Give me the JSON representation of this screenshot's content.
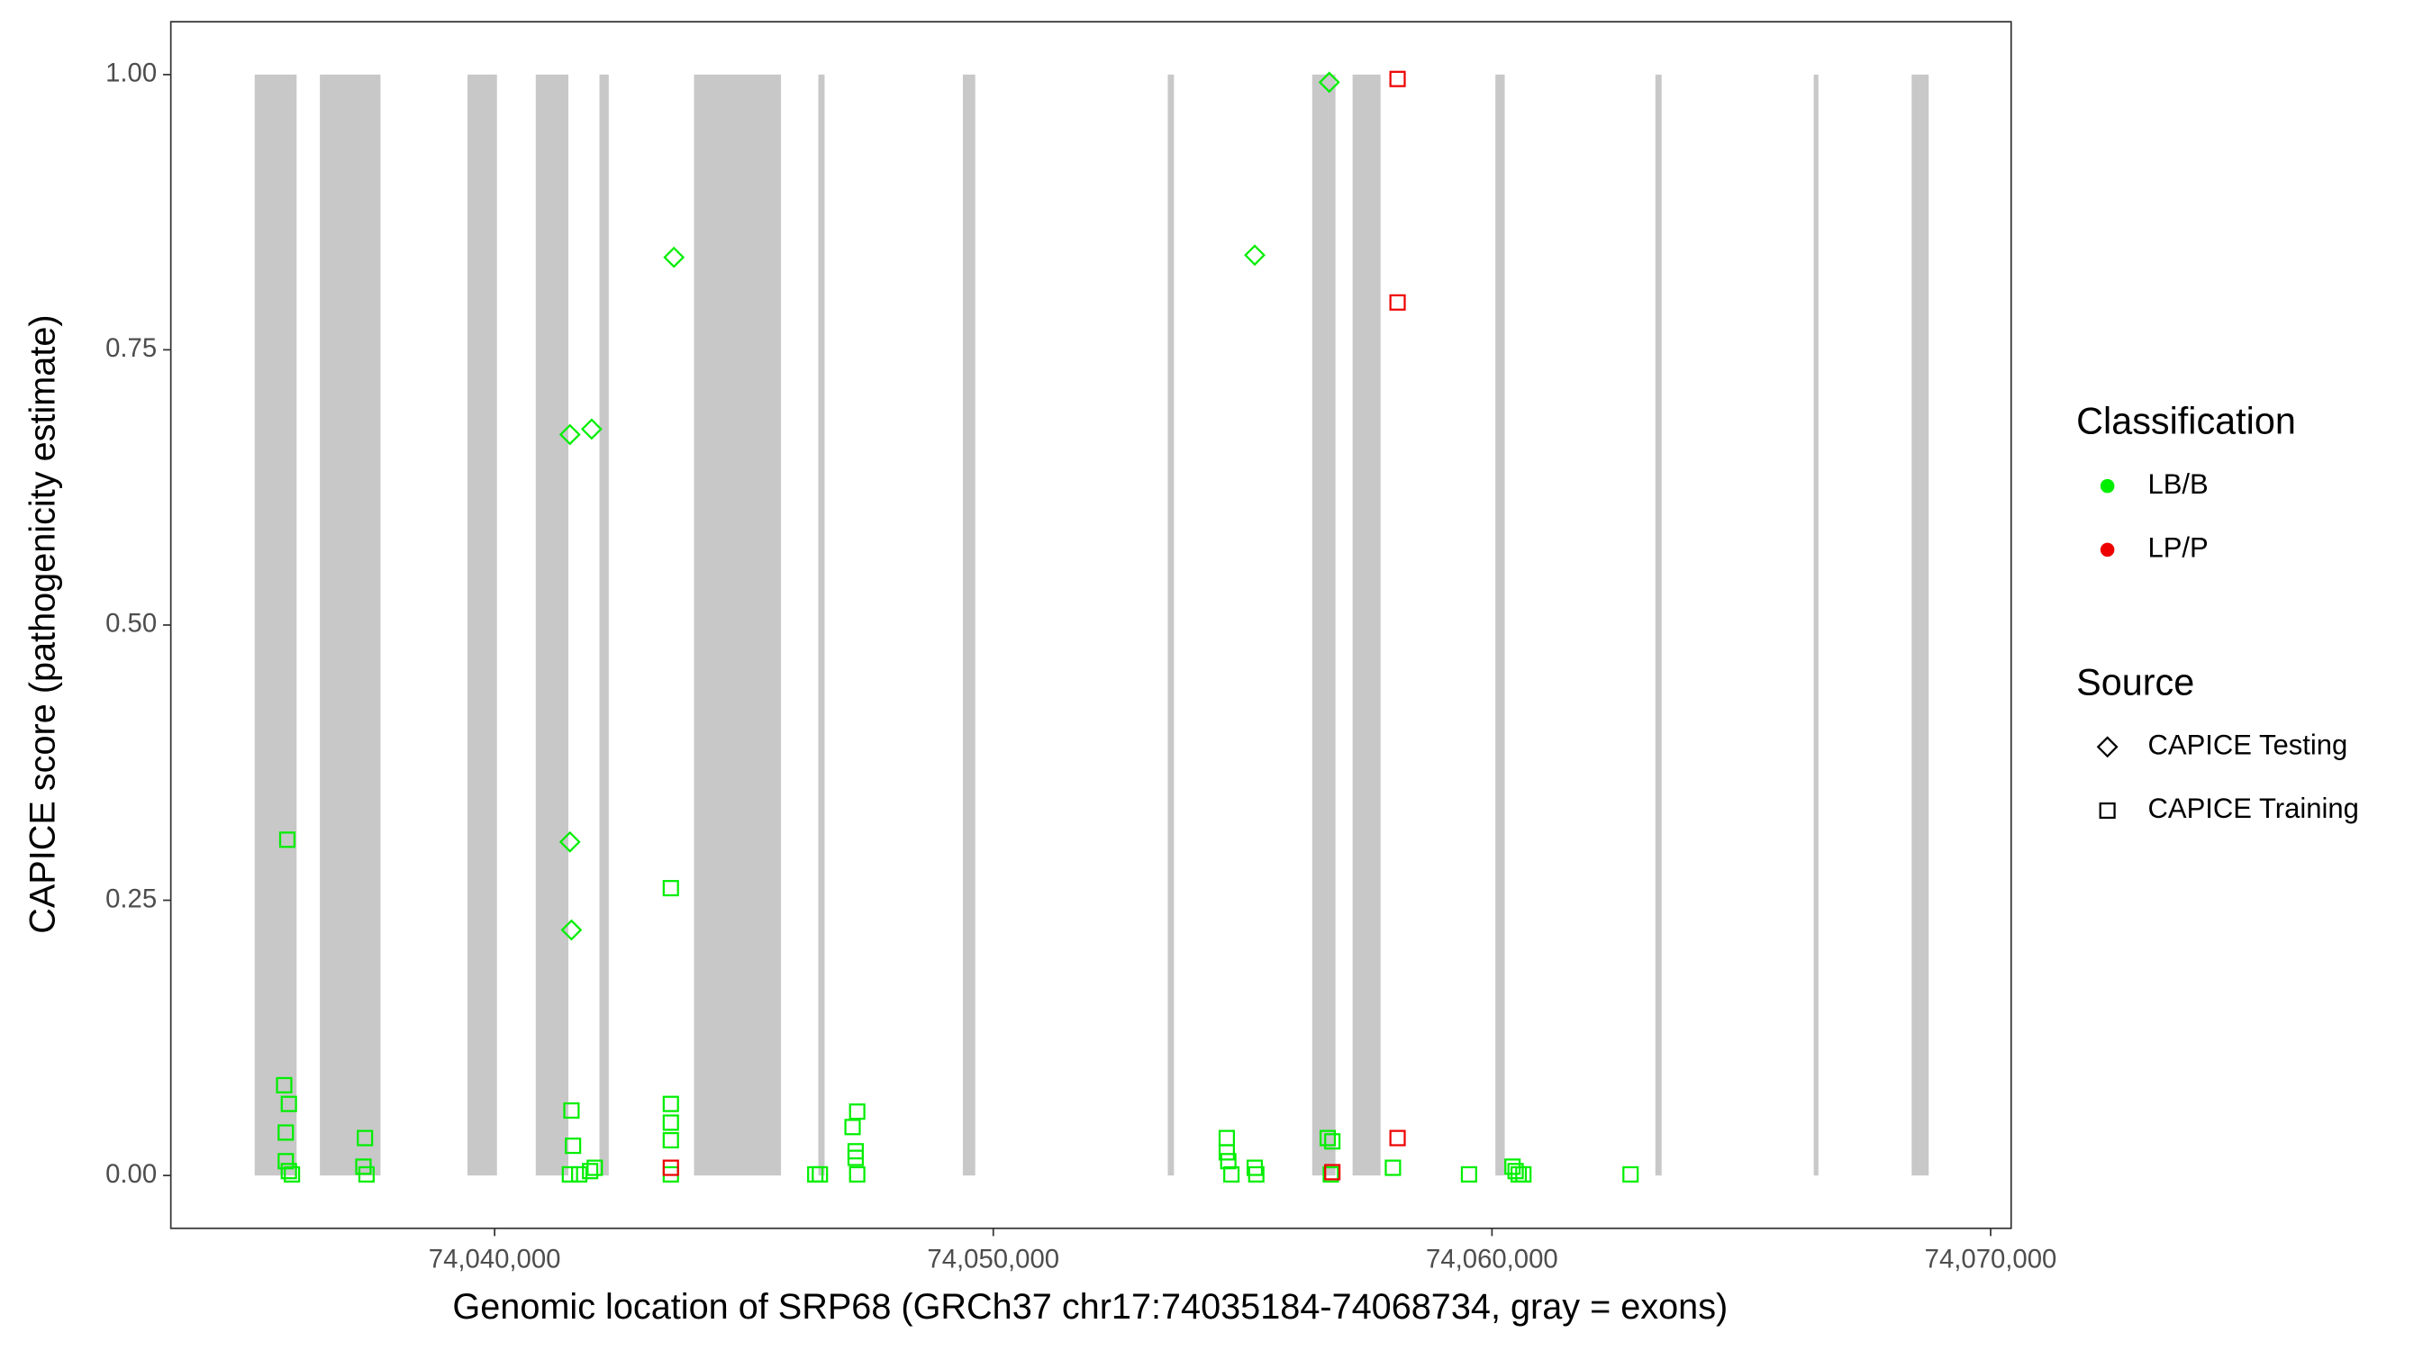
{
  "chart_data": {
    "type": "scatter",
    "xlabel": "Genomic location of SRP68 (GRCh37 chr17:74035184-74068734, gray = exons)",
    "ylabel": "CAPICE score (pathogenicity estimate)",
    "xlim": [
      74033507,
      74070411
    ],
    "ylim": [
      -0.048,
      1.048
    ],
    "xticks": [
      {
        "value": 74040000,
        "label": "74,040,000"
      },
      {
        "value": 74050000,
        "label": "74,050,000"
      },
      {
        "value": 74060000,
        "label": "74,060,000"
      },
      {
        "value": 74070000,
        "label": "74,070,000"
      }
    ],
    "yticks": [
      {
        "value": 0,
        "label": "0.00"
      },
      {
        "value": 0.25,
        "label": "0.25"
      },
      {
        "value": 0.5,
        "label": "0.50"
      },
      {
        "value": 0.75,
        "label": "0.75"
      },
      {
        "value": 1,
        "label": "1.00"
      }
    ],
    "exon_color": "#c8c8c8",
    "exons": [
      {
        "start": 74035189,
        "end": 74036029
      },
      {
        "start": 74036496,
        "end": 74037711
      },
      {
        "start": 74039455,
        "end": 74040047
      },
      {
        "start": 74040825,
        "end": 74041479
      },
      {
        "start": 74042102,
        "end": 74042289
      },
      {
        "start": 74043999,
        "end": 74045743
      },
      {
        "start": 74046492,
        "end": 74046617
      },
      {
        "start": 74049389,
        "end": 74049638
      },
      {
        "start": 74053499,
        "end": 74053623
      },
      {
        "start": 74056395,
        "end": 74056862
      },
      {
        "start": 74057205,
        "end": 74057766
      },
      {
        "start": 74060069,
        "end": 74060256
      },
      {
        "start": 74063277,
        "end": 74063402
      },
      {
        "start": 74066453,
        "end": 74066546
      },
      {
        "start": 74068416,
        "end": 74068758
      }
    ],
    "legend": {
      "classification": {
        "title": "Classification",
        "items": [
          {
            "label": "LB/B",
            "color": "#00ee00"
          },
          {
            "label": "LP/P",
            "color": "#ee0000"
          }
        ]
      },
      "source": {
        "title": "Source",
        "items": [
          {
            "label": "CAPICE Testing",
            "shape": "diamond"
          },
          {
            "label": "CAPICE Training",
            "shape": "square"
          }
        ]
      }
    },
    "series": [
      {
        "classification": 0,
        "source": 0,
        "x": [
          74056737,
          74043596,
          74055243,
          74041510,
          74041946,
          74041510,
          74041541
        ],
        "values": [
          0.993,
          0.834,
          0.836,
          0.673,
          0.678,
          0.303,
          0.223
        ]
      },
      {
        "classification": 0,
        "source": 1,
        "x": [
          74035843,
          74035780,
          74035874,
          74035812,
          74035812,
          74035874,
          74035936,
          74037400,
          74037369,
          74037431,
          74041541,
          74041572,
          74041510,
          74041697,
          74041915,
          74042008,
          74043534,
          74043534,
          74043534,
          74043534,
          74043534,
          74046430,
          74046523,
          74047271,
          74047178,
          74047240,
          74047240,
          74047271,
          74054682,
          74054682,
          74054713,
          74054775,
          74055243,
          74055274,
          74056706,
          74056799,
          74056768,
          74058014,
          74059540,
          74060412,
          74060474,
          74060536,
          74060630,
          74062779
        ],
        "values": [
          0.305,
          0.082,
          0.065,
          0.039,
          0.013,
          0.004,
          0.001,
          0.034,
          0.008,
          0.001,
          0.059,
          0.027,
          0.001,
          0.001,
          0.004,
          0.007,
          0.261,
          0.065,
          0.048,
          0.032,
          0.001,
          0.001,
          0.001,
          0.058,
          0.044,
          0.016,
          0.022,
          0.001,
          0.034,
          0.021,
          0.013,
          0.001,
          0.007,
          0.001,
          0.034,
          0.031,
          0.001,
          0.007,
          0.001,
          0.008,
          0.004,
          0.001,
          0.001,
          0.001
        ]
      },
      {
        "classification": 1,
        "source": 1,
        "x": [
          74058107,
          74058107,
          74058107,
          74043534,
          74056799
        ],
        "values": [
          0.996,
          0.793,
          0.034,
          0.007,
          0.003
        ]
      }
    ]
  }
}
